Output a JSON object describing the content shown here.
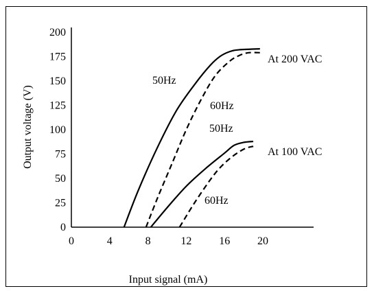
{
  "chart_data": {
    "type": "line",
    "xlabel": "Input signal (mA)",
    "ylabel": "Output voltage (V)",
    "xlim": [
      0,
      20
    ],
    "ylim": [
      0,
      200
    ],
    "x_ticks": [
      "0",
      "4",
      "8",
      "12",
      "16",
      "20"
    ],
    "y_ticks": [
      "0",
      "25",
      "50",
      "75",
      "100",
      "125",
      "150",
      "175",
      "200"
    ],
    "grid": false,
    "series": [
      {
        "name": "50Hz",
        "group": "At 200 VAC",
        "line_style": "solid",
        "color": "#000000",
        "x": [
          5.5,
          7,
          9,
          11,
          13,
          14.5,
          15.5,
          16.5,
          17.5,
          19.7
        ],
        "y": [
          0,
          38,
          82,
          120,
          148,
          166,
          175,
          180,
          182,
          183
        ]
      },
      {
        "name": "60Hz",
        "group": "At 200 VAC",
        "line_style": "dashed",
        "color": "#000000",
        "x": [
          7.8,
          9,
          10.5,
          12,
          13.5,
          15,
          16.5,
          17.5,
          18.5,
          19.8
        ],
        "y": [
          0,
          30,
          65,
          100,
          130,
          155,
          170,
          176,
          179,
          179
        ]
      },
      {
        "name": "50Hz",
        "group": "At 100 VAC",
        "line_style": "solid",
        "color": "#000000",
        "x": [
          8.3,
          10,
          12,
          14,
          16,
          17,
          18,
          19
        ],
        "y": [
          0,
          20,
          42,
          60,
          76,
          84,
          87,
          88
        ]
      },
      {
        "name": "60Hz",
        "group": "At 100 VAC",
        "line_style": "dashed",
        "color": "#000000",
        "x": [
          11.3,
          13,
          15,
          16.5,
          18,
          19
        ],
        "y": [
          0,
          27,
          55,
          70,
          80,
          83
        ]
      }
    ],
    "annotations": {
      "group_200": "At 200 VAC",
      "group_100": "At 100 VAC",
      "lbl_200_50": "50Hz",
      "lbl_200_60": "60Hz",
      "lbl_100_50": "50Hz",
      "lbl_100_60": "60Hz"
    }
  }
}
